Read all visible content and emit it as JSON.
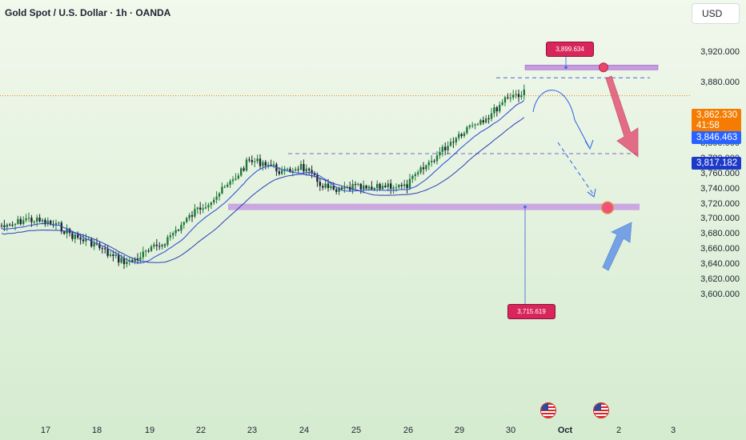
{
  "header": {
    "title": "Gold Spot / U.S. Dollar · 1h · OANDA",
    "currency_button": "USD"
  },
  "price_scale": {
    "ticks": [
      "3,920.000",
      "3,880.000",
      "3,800.000",
      "3,780.000",
      "3,760.000",
      "3,740.000",
      "3,720.000",
      "3,700.000",
      "3,680.000",
      "3,660.000",
      "3,640.000",
      "3,620.000",
      "3,600.000"
    ],
    "current_price": "3,862.330",
    "countdown": "41:58",
    "ma_fast_value": "3,846.463",
    "ma_slow_value": "3,817.182"
  },
  "time_scale": {
    "ticks": [
      "17",
      "18",
      "19",
      "22",
      "23",
      "24",
      "25",
      "26",
      "29",
      "30",
      "Oct",
      "2",
      "3"
    ]
  },
  "annotations": {
    "resistance_label": "3,899.634",
    "support_label": "3,715.619"
  },
  "colors": {
    "background_top": "#eef7e9",
    "background_bottom": "#d6ecd1",
    "candle_up": "#1f7a3a",
    "candle_down": "#1d2430",
    "ma_line": "#3355d6",
    "zone": "#c79be0",
    "bear_arrow": "#e0476a",
    "bull_arrow": "#5b8fe6",
    "current_price_tag": "#f57c00",
    "ma_fast_tag": "#2962ff",
    "ma_slow_tag": "#1c39c9",
    "callout": "#d9265a"
  },
  "chart_data": {
    "type": "candlestick",
    "symbol": "XAUUSD",
    "interval": "1h",
    "x": [
      "17",
      "18",
      "19",
      "22",
      "23",
      "24",
      "25",
      "26",
      "29",
      "30",
      "Oct",
      "2",
      "3"
    ],
    "ylim": [
      3600,
      3940
    ],
    "close_path": [
      [
        "17",
        3688
      ],
      [
        "17",
        3700
      ],
      [
        "17",
        3696
      ],
      [
        "18",
        3690
      ],
      [
        "18",
        3675
      ],
      [
        "18",
        3668
      ],
      [
        "19",
        3650
      ],
      [
        "19",
        3642
      ],
      [
        "19",
        3655
      ],
      [
        "22",
        3668
      ],
      [
        "22",
        3690
      ],
      [
        "22",
        3712
      ],
      [
        "23",
        3728
      ],
      [
        "23",
        3748
      ],
      [
        "23",
        3776
      ],
      [
        "24",
        3774
      ],
      [
        "24",
        3760
      ],
      [
        "24",
        3770
      ],
      [
        "25",
        3748
      ],
      [
        "25",
        3735
      ],
      [
        "25",
        3742
      ],
      [
        "26",
        3738
      ],
      [
        "26",
        3745
      ],
      [
        "26",
        3741
      ],
      [
        "29",
        3764
      ],
      [
        "29",
        3786
      ],
      [
        "29",
        3808
      ],
      [
        "30",
        3826
      ],
      [
        "30",
        3836
      ],
      [
        "30",
        3862
      ]
    ],
    "moving_average_values": [
      3846.463,
      3817.182
    ],
    "levels": [
      {
        "label": "3,899.634",
        "price": 3899.634,
        "kind": "resistance"
      },
      {
        "label": "3,715.619",
        "price": 3715.619,
        "kind": "support"
      }
    ],
    "dashed_levels": [
      3886,
      3786
    ],
    "current_price": 3862.33,
    "grid": false
  }
}
